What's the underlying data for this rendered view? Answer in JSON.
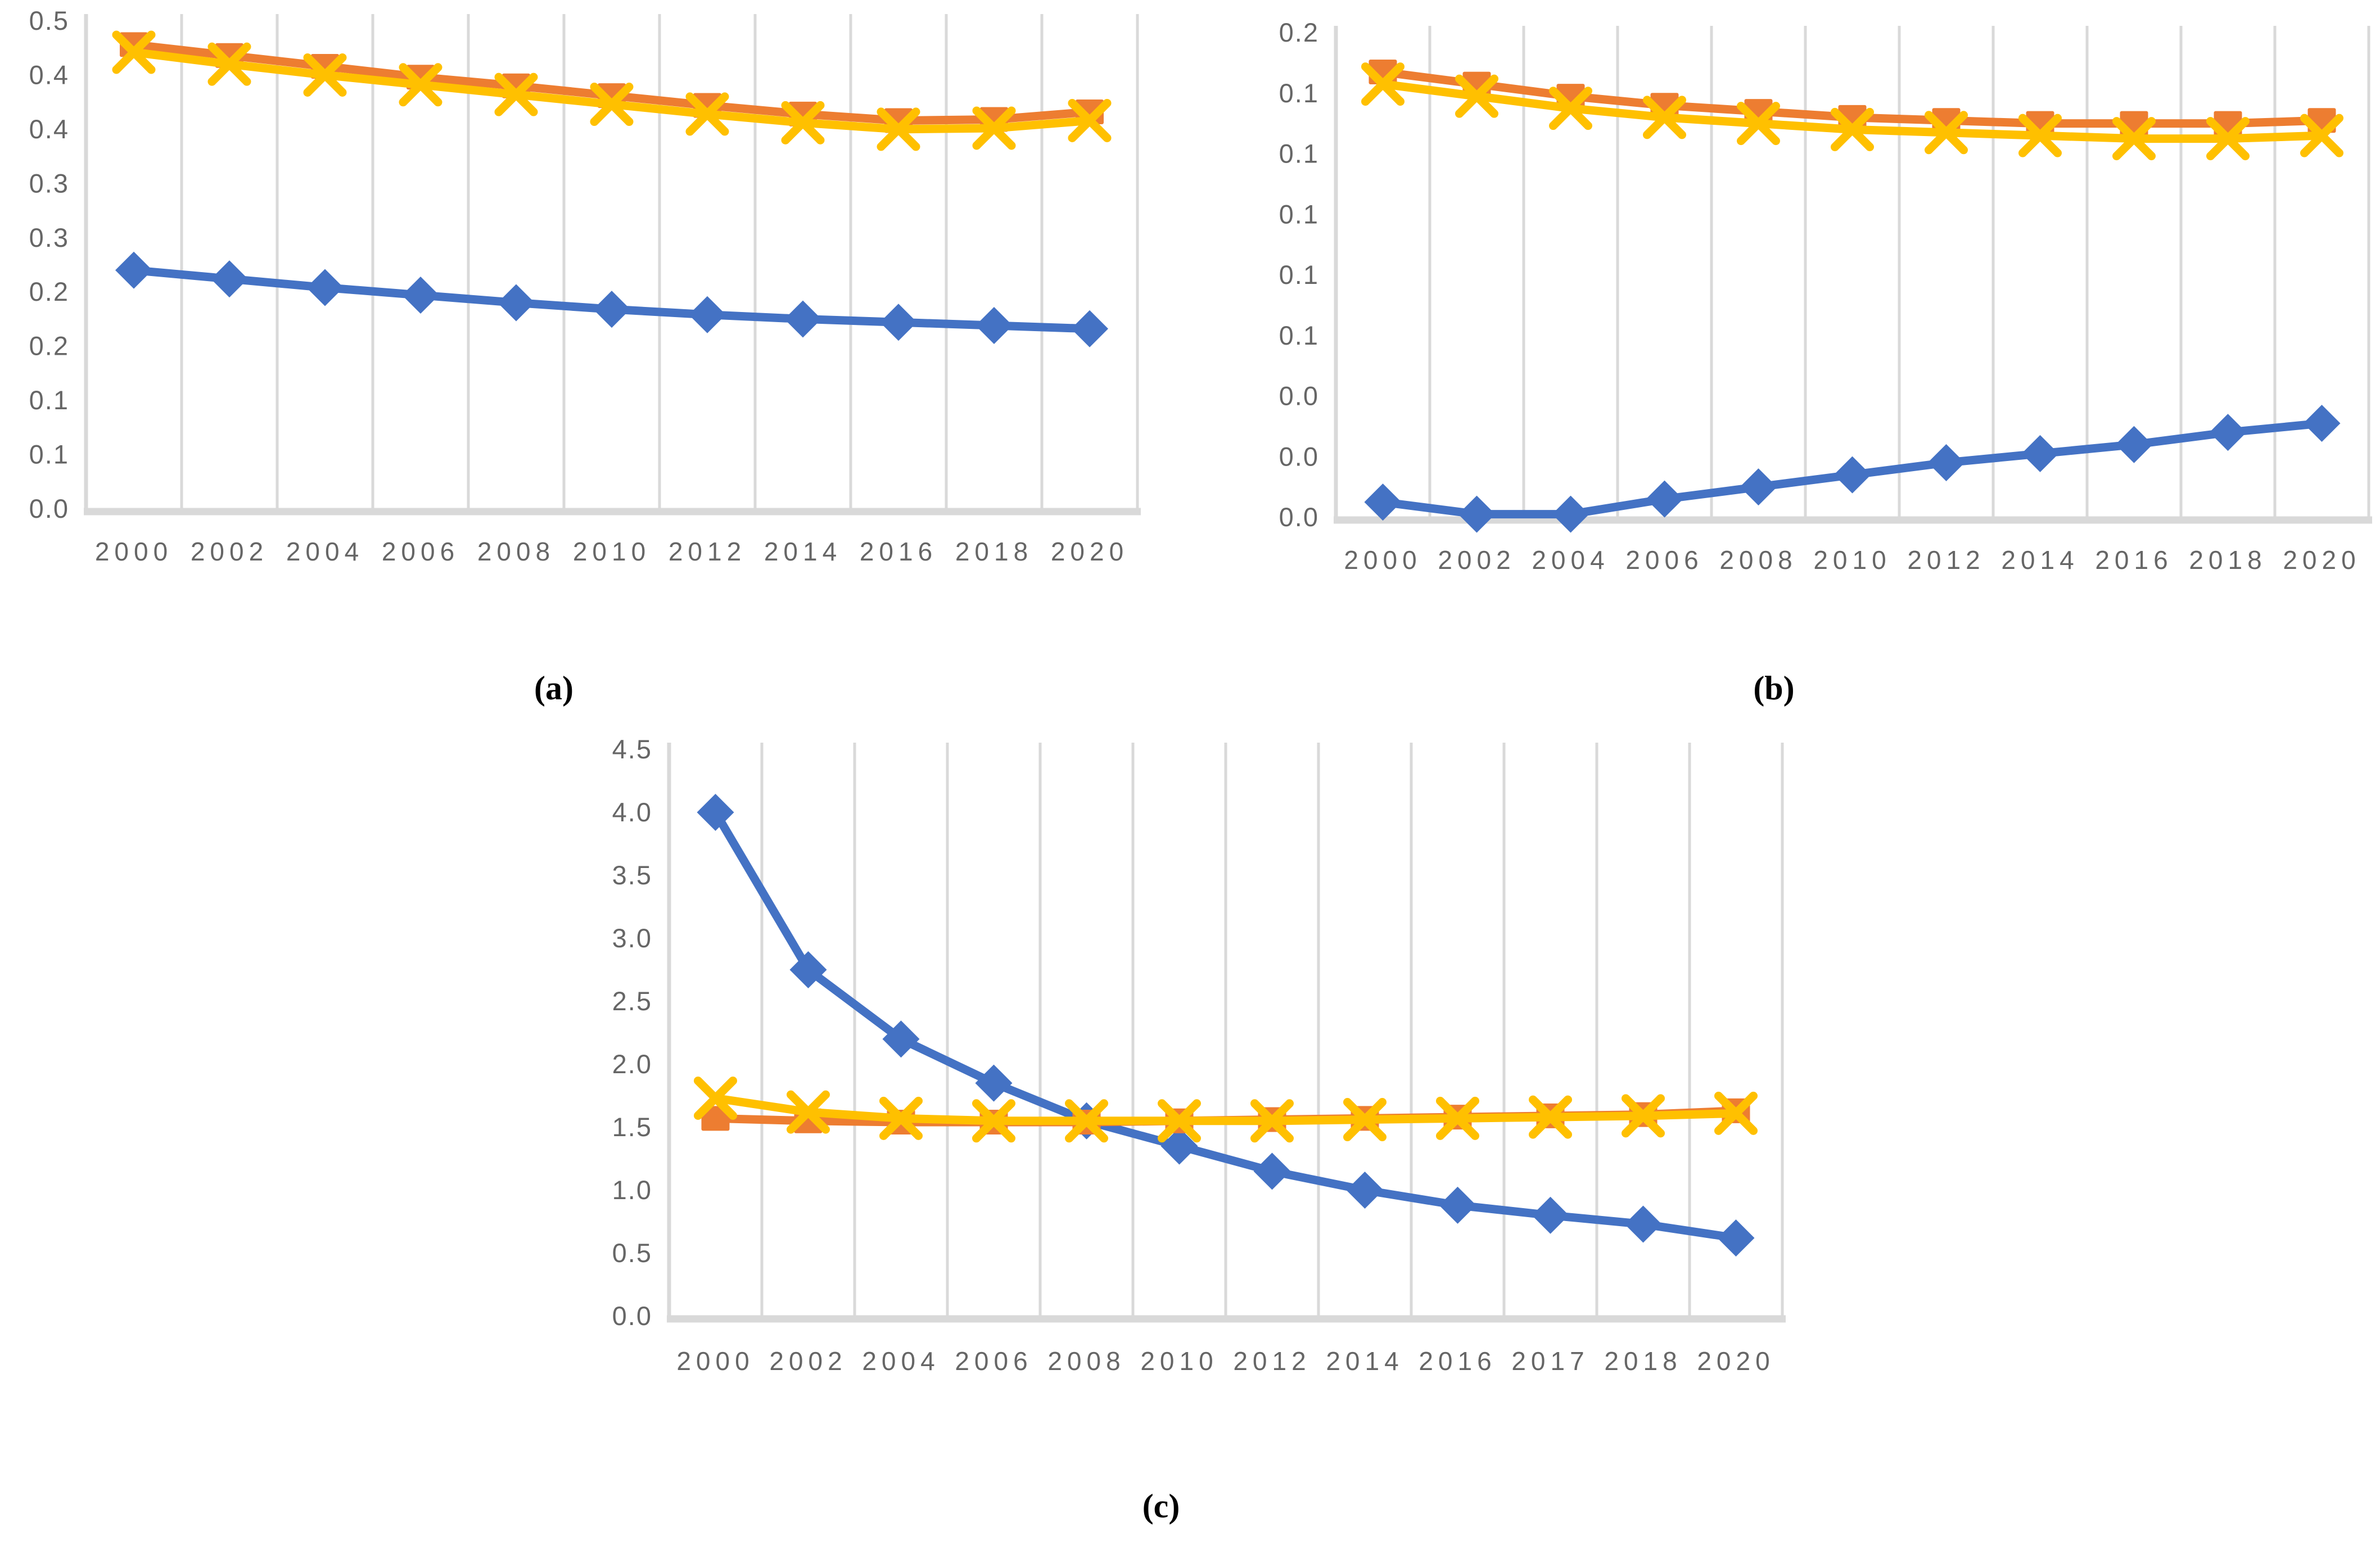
{
  "colors": {
    "blue": "#4472C4",
    "orange": "#ED7D31",
    "gold": "#FFC000",
    "gridline": "#D9D9D9",
    "axis_line": "#D9D9D9",
    "tick_text": "#666666"
  },
  "chart_data": [
    {
      "id": "a",
      "type": "line",
      "caption": "(a)",
      "title": "",
      "xlabel": "",
      "ylabel": "",
      "legend": "none",
      "grid": "vertical",
      "categories": [
        "2000",
        "2002",
        "2004",
        "2006",
        "2008",
        "2010",
        "2012",
        "2014",
        "2016",
        "2018",
        "2020"
      ],
      "y_axis": {
        "min": 0,
        "max": 0.45,
        "step": 0.05,
        "tick_labels_top_to_bottom": [
          "0.5",
          "0.4",
          "0.4",
          "0.3",
          "0.3",
          "0.2",
          "0.2",
          "0.1",
          "0.1",
          "0.0"
        ]
      },
      "series": [
        {
          "name": "blue-diamond",
          "marker": "diamond",
          "color": "#4472C4",
          "values": [
            0.22,
            0.212,
            0.204,
            0.197,
            0.19,
            0.184,
            0.179,
            0.175,
            0.172,
            0.169,
            0.166
          ]
        },
        {
          "name": "orange-square",
          "marker": "square",
          "color": "#ED7D31",
          "values": [
            0.428,
            0.418,
            0.408,
            0.398,
            0.39,
            0.381,
            0.372,
            0.364,
            0.358,
            0.359,
            0.366
          ]
        },
        {
          "name": "gold-x",
          "marker": "x",
          "color": "#FFC000",
          "values": [
            0.421,
            0.41,
            0.4,
            0.391,
            0.382,
            0.373,
            0.364,
            0.356,
            0.35,
            0.351,
            0.358
          ]
        }
      ]
    },
    {
      "id": "b",
      "type": "line",
      "caption": "(b)",
      "title": "",
      "xlabel": "",
      "ylabel": "",
      "legend": "none",
      "grid": "vertical",
      "categories": [
        "2000",
        "2002",
        "2004",
        "2006",
        "2008",
        "2010",
        "2012",
        "2014",
        "2016",
        "2018",
        "2020"
      ],
      "y_axis": {
        "min": 0,
        "max": 0.16,
        "step": 0.02,
        "tick_labels_top_to_bottom": [
          "0.2",
          "0.1",
          "0.1",
          "0.1",
          "0.1",
          "0.1",
          "0.0",
          "0.0",
          "0.0"
        ]
      },
      "series": [
        {
          "name": "blue-diamond",
          "marker": "diamond",
          "color": "#4472C4",
          "values": [
            0.005,
            0.001,
            0.001,
            0.006,
            0.01,
            0.014,
            0.018,
            0.021,
            0.024,
            0.028,
            0.031
          ]
        },
        {
          "name": "orange-square",
          "marker": "square",
          "color": "#ED7D31",
          "values": [
            0.147,
            0.143,
            0.139,
            0.136,
            0.134,
            0.132,
            0.131,
            0.13,
            0.13,
            0.13,
            0.131
          ]
        },
        {
          "name": "gold-x",
          "marker": "x",
          "color": "#FFC000",
          "values": [
            0.143,
            0.139,
            0.135,
            0.132,
            0.13,
            0.128,
            0.127,
            0.126,
            0.125,
            0.125,
            0.126
          ]
        }
      ]
    },
    {
      "id": "c",
      "type": "line",
      "caption": "(c)",
      "title": "",
      "xlabel": "",
      "ylabel": "",
      "legend": "none",
      "grid": "vertical",
      "categories": [
        "2000",
        "2002",
        "2004",
        "2006",
        "2008",
        "2010",
        "2012",
        "2014",
        "2016",
        "2017",
        "2018",
        "2020"
      ],
      "y_axis": {
        "min": 0,
        "max": 4.5,
        "step": 0.5,
        "tick_labels_top_to_bottom": [
          "4.5",
          "4.0",
          "3.5",
          "3.0",
          "2.5",
          "2.0",
          "1.5",
          "1.0",
          "0.5",
          "0.0"
        ]
      },
      "series": [
        {
          "name": "blue-diamond",
          "marker": "diamond",
          "color": "#4472C4",
          "values": [
            4.0,
            2.75,
            2.2,
            1.85,
            1.55,
            1.35,
            1.15,
            1.0,
            0.88,
            0.8,
            0.73,
            0.62
          ]
        },
        {
          "name": "orange-square",
          "marker": "square",
          "color": "#ED7D31",
          "values": [
            1.57,
            1.55,
            1.54,
            1.54,
            1.54,
            1.55,
            1.56,
            1.57,
            1.58,
            1.59,
            1.6,
            1.63
          ]
        },
        {
          "name": "gold-x",
          "marker": "x",
          "color": "#FFC000",
          "values": [
            1.73,
            1.62,
            1.57,
            1.55,
            1.55,
            1.55,
            1.55,
            1.56,
            1.57,
            1.58,
            1.59,
            1.61
          ]
        }
      ]
    }
  ]
}
